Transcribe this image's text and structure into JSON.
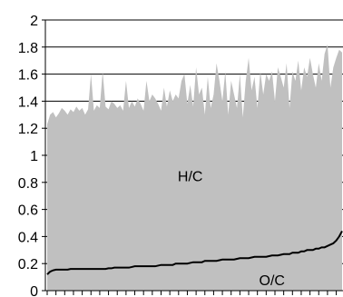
{
  "chart_data": {
    "type": "area",
    "title": "",
    "xlabel": "",
    "ylabel": "",
    "ylim": [
      0,
      2
    ],
    "yticks": [
      "0",
      "0.2",
      "0.4",
      "0.6",
      "0.8",
      "1",
      "1.2",
      "1.4",
      "1.6",
      "1.8",
      "2"
    ],
    "x": [
      1,
      2,
      3,
      4,
      5,
      6,
      7,
      8,
      9,
      10,
      11,
      12,
      13,
      14,
      15,
      16,
      17,
      18,
      19,
      20,
      21,
      22,
      23,
      24,
      25,
      26,
      27,
      28,
      29,
      30,
      31,
      32,
      33,
      34,
      35,
      36,
      37,
      38,
      39,
      40,
      41,
      42,
      43,
      44,
      45,
      46,
      47,
      48,
      49,
      50,
      51,
      52,
      53,
      54,
      55,
      56,
      57,
      58,
      59,
      60,
      61,
      62,
      63,
      64,
      65,
      66,
      67,
      68,
      69,
      70,
      71,
      72,
      73,
      74,
      75,
      76,
      77,
      78,
      79,
      80,
      81,
      82,
      83,
      84,
      85,
      86,
      87,
      88,
      89,
      90,
      91,
      92,
      93,
      94,
      95,
      96,
      97,
      98,
      99,
      100,
      101,
      102
    ],
    "series": [
      {
        "name": "H/C",
        "style": "filled",
        "values": [
          1.23,
          1.3,
          1.32,
          1.28,
          1.31,
          1.35,
          1.33,
          1.3,
          1.34,
          1.32,
          1.36,
          1.33,
          1.35,
          1.3,
          1.34,
          1.6,
          1.33,
          1.37,
          1.35,
          1.62,
          1.36,
          1.34,
          1.4,
          1.38,
          1.35,
          1.37,
          1.33,
          1.55,
          1.35,
          1.4,
          1.36,
          1.42,
          1.38,
          1.33,
          1.55,
          1.4,
          1.45,
          1.42,
          1.38,
          1.33,
          1.5,
          1.36,
          1.48,
          1.4,
          1.45,
          1.42,
          1.55,
          1.6,
          1.38,
          1.52,
          1.36,
          1.65,
          1.45,
          1.5,
          1.3,
          1.58,
          1.35,
          1.45,
          1.68,
          1.55,
          1.4,
          1.62,
          1.3,
          1.55,
          1.45,
          1.35,
          1.6,
          1.28,
          1.55,
          1.72,
          1.48,
          1.58,
          1.35,
          1.62,
          1.45,
          1.6,
          1.55,
          1.62,
          1.4,
          1.65,
          1.58,
          1.5,
          1.68,
          1.35,
          1.62,
          1.55,
          1.7,
          1.48,
          1.65,
          1.58,
          1.72,
          1.6,
          1.5,
          1.68,
          1.55,
          1.75,
          1.82,
          1.5,
          1.65,
          1.72,
          1.78,
          1.76
        ],
        "color": "#c0c0c0"
      },
      {
        "name": "O/C",
        "style": "line",
        "values": [
          0.12,
          0.14,
          0.15,
          0.155,
          0.155,
          0.155,
          0.155,
          0.155,
          0.16,
          0.16,
          0.16,
          0.16,
          0.16,
          0.16,
          0.16,
          0.16,
          0.16,
          0.16,
          0.16,
          0.16,
          0.16,
          0.165,
          0.165,
          0.17,
          0.17,
          0.17,
          0.17,
          0.17,
          0.17,
          0.175,
          0.18,
          0.18,
          0.18,
          0.18,
          0.18,
          0.18,
          0.18,
          0.18,
          0.185,
          0.19,
          0.19,
          0.19,
          0.19,
          0.19,
          0.2,
          0.2,
          0.2,
          0.2,
          0.2,
          0.205,
          0.21,
          0.21,
          0.21,
          0.21,
          0.22,
          0.22,
          0.22,
          0.22,
          0.22,
          0.225,
          0.23,
          0.23,
          0.23,
          0.23,
          0.23,
          0.235,
          0.24,
          0.24,
          0.24,
          0.24,
          0.245,
          0.25,
          0.25,
          0.25,
          0.25,
          0.25,
          0.255,
          0.26,
          0.26,
          0.26,
          0.265,
          0.27,
          0.27,
          0.27,
          0.28,
          0.28,
          0.28,
          0.29,
          0.29,
          0.3,
          0.3,
          0.3,
          0.31,
          0.31,
          0.32,
          0.32,
          0.33,
          0.34,
          0.35,
          0.37,
          0.4,
          0.44
        ],
        "color": "#000000"
      }
    ],
    "annotations": [
      {
        "text": "H/C",
        "x": 50,
        "y": 0.85
      },
      {
        "text": "O/C",
        "x": 78,
        "y": 0.08
      }
    ],
    "grid": "horizontal",
    "legend": "none"
  }
}
